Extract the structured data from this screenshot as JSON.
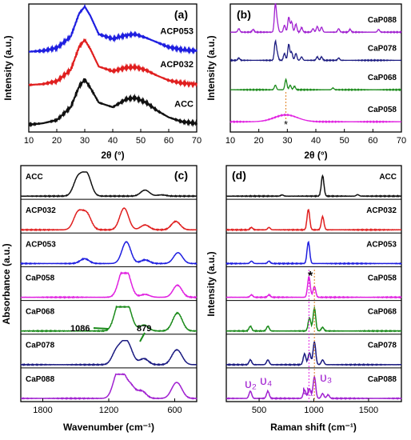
{
  "chart_data": [
    {
      "type": "line",
      "panel_label": "(a)",
      "xlabel": "2θ (°)",
      "ylabel": "Intensity (a.u.)",
      "xlim": [
        10,
        70
      ],
      "xticks": [
        "10",
        "20",
        "30",
        "40",
        "50",
        "60",
        "70"
      ],
      "series": [
        {
          "name": "ACP053",
          "color": "#1f1fe0",
          "baseline": 0.62,
          "points": [
            [
              10,
              0.02
            ],
            [
              15,
              0.04
            ],
            [
              20,
              0.1
            ],
            [
              25,
              0.35
            ],
            [
              28,
              0.85
            ],
            [
              30,
              1.0
            ],
            [
              32,
              0.8
            ],
            [
              35,
              0.4
            ],
            [
              40,
              0.3
            ],
            [
              45,
              0.38
            ],
            [
              48,
              0.4
            ],
            [
              52,
              0.32
            ],
            [
              56,
              0.22
            ],
            [
              60,
              0.12
            ],
            [
              65,
              0.06
            ],
            [
              70,
              0.04
            ]
          ]
        },
        {
          "name": "ACP032",
          "color": "#e01f1f",
          "baseline": 0.36,
          "points": [
            [
              10,
              0.02
            ],
            [
              15,
              0.04
            ],
            [
              20,
              0.1
            ],
            [
              25,
              0.35
            ],
            [
              28,
              0.85
            ],
            [
              30,
              1.0
            ],
            [
              32,
              0.8
            ],
            [
              35,
              0.42
            ],
            [
              40,
              0.32
            ],
            [
              45,
              0.4
            ],
            [
              48,
              0.41
            ],
            [
              52,
              0.34
            ],
            [
              56,
              0.22
            ],
            [
              60,
              0.12
            ],
            [
              65,
              0.06
            ],
            [
              70,
              0.04
            ]
          ]
        },
        {
          "name": "ACC",
          "color": "#111111",
          "baseline": 0.05,
          "points": [
            [
              10,
              0.02
            ],
            [
              15,
              0.05
            ],
            [
              20,
              0.12
            ],
            [
              25,
              0.4
            ],
            [
              28,
              0.85
            ],
            [
              30,
              1.0
            ],
            [
              32,
              0.82
            ],
            [
              35,
              0.5
            ],
            [
              40,
              0.4
            ],
            [
              45,
              0.58
            ],
            [
              48,
              0.6
            ],
            [
              52,
              0.5
            ],
            [
              56,
              0.32
            ],
            [
              60,
              0.18
            ],
            [
              65,
              0.08
            ],
            [
              70,
              0.05
            ]
          ]
        }
      ]
    },
    {
      "type": "line",
      "panel_label": "(b)",
      "xlabel": "2θ (°)",
      "ylabel": "Intensity (a.u.)",
      "xlim": [
        10,
        70
      ],
      "xticks": [
        "10",
        "20",
        "30",
        "40",
        "50",
        "60",
        "70"
      ],
      "annotation": "*",
      "marker_x": 29.5,
      "series": [
        {
          "name": "CaP088",
          "color": "#a020d0",
          "baseline": 0.78,
          "peaks": [
            [
              13,
              0.15
            ],
            [
              18,
              0.12
            ],
            [
              25.8,
              1.2
            ],
            [
              26.5,
              0.35
            ],
            [
              29.0,
              0.3
            ],
            [
              30.5,
              0.65
            ],
            [
              31.5,
              0.45
            ],
            [
              33,
              0.35
            ],
            [
              35,
              0.2
            ],
            [
              39,
              0.15
            ],
            [
              40.5,
              0.25
            ],
            [
              42,
              0.22
            ],
            [
              48,
              0.15
            ],
            [
              52,
              0.12
            ],
            [
              62,
              0.12
            ]
          ]
        },
        {
          "name": "CaP078",
          "color": "#1a1a80",
          "baseline": 0.56,
          "peaks": [
            [
              13,
              0.1
            ],
            [
              25.8,
              0.8
            ],
            [
              26.5,
              0.25
            ],
            [
              29,
              0.3
            ],
            [
              30.5,
              0.7
            ],
            [
              31.5,
              0.35
            ],
            [
              33,
              0.3
            ],
            [
              35,
              0.15
            ],
            [
              40.5,
              0.15
            ],
            [
              42,
              0.15
            ],
            [
              48,
              0.1
            ]
          ]
        },
        {
          "name": "CaP068",
          "color": "#1a8a1a",
          "baseline": 0.33,
          "peaks": [
            [
              25.8,
              0.2
            ],
            [
              29.5,
              0.45
            ],
            [
              31,
              0.2
            ],
            [
              32.5,
              0.15
            ],
            [
              46,
              0.08
            ]
          ]
        },
        {
          "name": "CaP058",
          "color": "#e020e0",
          "baseline": 0.08,
          "peaks": [
            [
              29.5,
              0.3
            ]
          ]
        }
      ]
    },
    {
      "type": "line",
      "panel_label": "(c)",
      "xlabel": "Wavenumber (cm⁻¹)",
      "ylabel": "Absorbance (a.u.)",
      "xlim": [
        2000,
        400
      ],
      "xticks": [
        "1800",
        "1200",
        "600"
      ],
      "annotations": [
        "1086",
        "879"
      ],
      "series": [
        {
          "name": "ACC",
          "color": "#111111",
          "peaks": [
            [
              1480,
              0.75
            ],
            [
              1400,
              0.9
            ],
            [
              870,
              0.25
            ],
            [
              720,
              0.05
            ]
          ]
        },
        {
          "name": "ACP032",
          "color": "#e01f1f",
          "peaks": [
            [
              1480,
              0.7
            ],
            [
              1400,
              0.65
            ],
            [
              1060,
              0.9
            ],
            [
              870,
              0.2
            ],
            [
              590,
              0.35
            ]
          ]
        },
        {
          "name": "ACP053",
          "color": "#1f1fe0",
          "peaks": [
            [
              1420,
              0.2
            ],
            [
              1040,
              0.9
            ],
            [
              870,
              0.15
            ],
            [
              570,
              0.45
            ]
          ]
        },
        {
          "name": "CaP058",
          "color": "#e020e0",
          "peaks": [
            [
              1080,
              0.8
            ],
            [
              1030,
              0.75
            ],
            [
              870,
              0.12
            ],
            [
              575,
              0.5
            ]
          ]
        },
        {
          "name": "CaP068",
          "color": "#1a8a1a",
          "peaks": [
            [
              1120,
              0.75
            ],
            [
              1070,
              0.8
            ],
            [
              1020,
              0.7
            ],
            [
              879,
              0.25
            ],
            [
              590,
              0.4
            ],
            [
              560,
              0.4
            ]
          ]
        },
        {
          "name": "CaP078",
          "color": "#1a1a80",
          "peaks": [
            [
              1130,
              0.55
            ],
            [
              1060,
              0.7
            ],
            [
              1010,
              0.5
            ],
            [
              880,
              0.25
            ],
            [
              600,
              0.35
            ],
            [
              560,
              0.35
            ]
          ]
        },
        {
          "name": "CaP088",
          "color": "#a020d0",
          "peaks": [
            [
              1130,
              0.7
            ],
            [
              1080,
              0.85
            ],
            [
              1000,
              0.5
            ],
            [
              900,
              0.3
            ],
            [
              600,
              0.4
            ],
            [
              560,
              0.35
            ]
          ]
        }
      ]
    },
    {
      "type": "line",
      "panel_label": "(d)",
      "xlabel": "Raman shift (cm⁻¹)",
      "ylabel": "Intensity (a.u.)",
      "xlim": [
        200,
        1800
      ],
      "xticks": [
        "500",
        "1000",
        "1500"
      ],
      "annotations": [
        "υ₂",
        "υ₄",
        "υ₁",
        "υ₃",
        "*"
      ],
      "series": [
        {
          "name": "ACC",
          "color": "#111111",
          "peaks": [
            [
              710,
              0.05
            ],
            [
              1080,
              0.85
            ],
            [
              1400,
              0.06
            ]
          ]
        },
        {
          "name": "ACP032",
          "color": "#e01f1f",
          "peaks": [
            [
              950,
              0.85
            ],
            [
              1080,
              0.55
            ],
            [
              430,
              0.1
            ],
            [
              590,
              0.1
            ]
          ]
        },
        {
          "name": "ACP053",
          "color": "#1f1fe0",
          "peaks": [
            [
              950,
              0.9
            ],
            [
              430,
              0.1
            ],
            [
              590,
              0.1
            ]
          ]
        },
        {
          "name": "CaP058",
          "color": "#e020e0",
          "peaks": [
            [
              955,
              0.85
            ],
            [
              1005,
              0.45
            ],
            [
              430,
              0.1
            ],
            [
              590,
              0.1
            ]
          ]
        },
        {
          "name": "CaP068",
          "color": "#1a8a1a",
          "peaks": [
            [
              960,
              0.55
            ],
            [
              1005,
              0.95
            ],
            [
              420,
              0.2
            ],
            [
              580,
              0.2
            ],
            [
              1080,
              0.15
            ]
          ]
        },
        {
          "name": "CaP078",
          "color": "#1a1a80",
          "peaks": [
            [
              915,
              0.45
            ],
            [
              960,
              0.5
            ],
            [
              1005,
              0.95
            ],
            [
              420,
              0.2
            ],
            [
              580,
              0.2
            ],
            [
              1080,
              0.2
            ]
          ]
        },
        {
          "name": "CaP088",
          "color": "#a020d0",
          "peaks": [
            [
              915,
              0.35
            ],
            [
              960,
              0.4
            ],
            [
              1005,
              0.9
            ],
            [
              420,
              0.3
            ],
            [
              580,
              0.3
            ],
            [
              1080,
              0.2
            ],
            [
              1130,
              0.15
            ]
          ]
        }
      ]
    }
  ]
}
